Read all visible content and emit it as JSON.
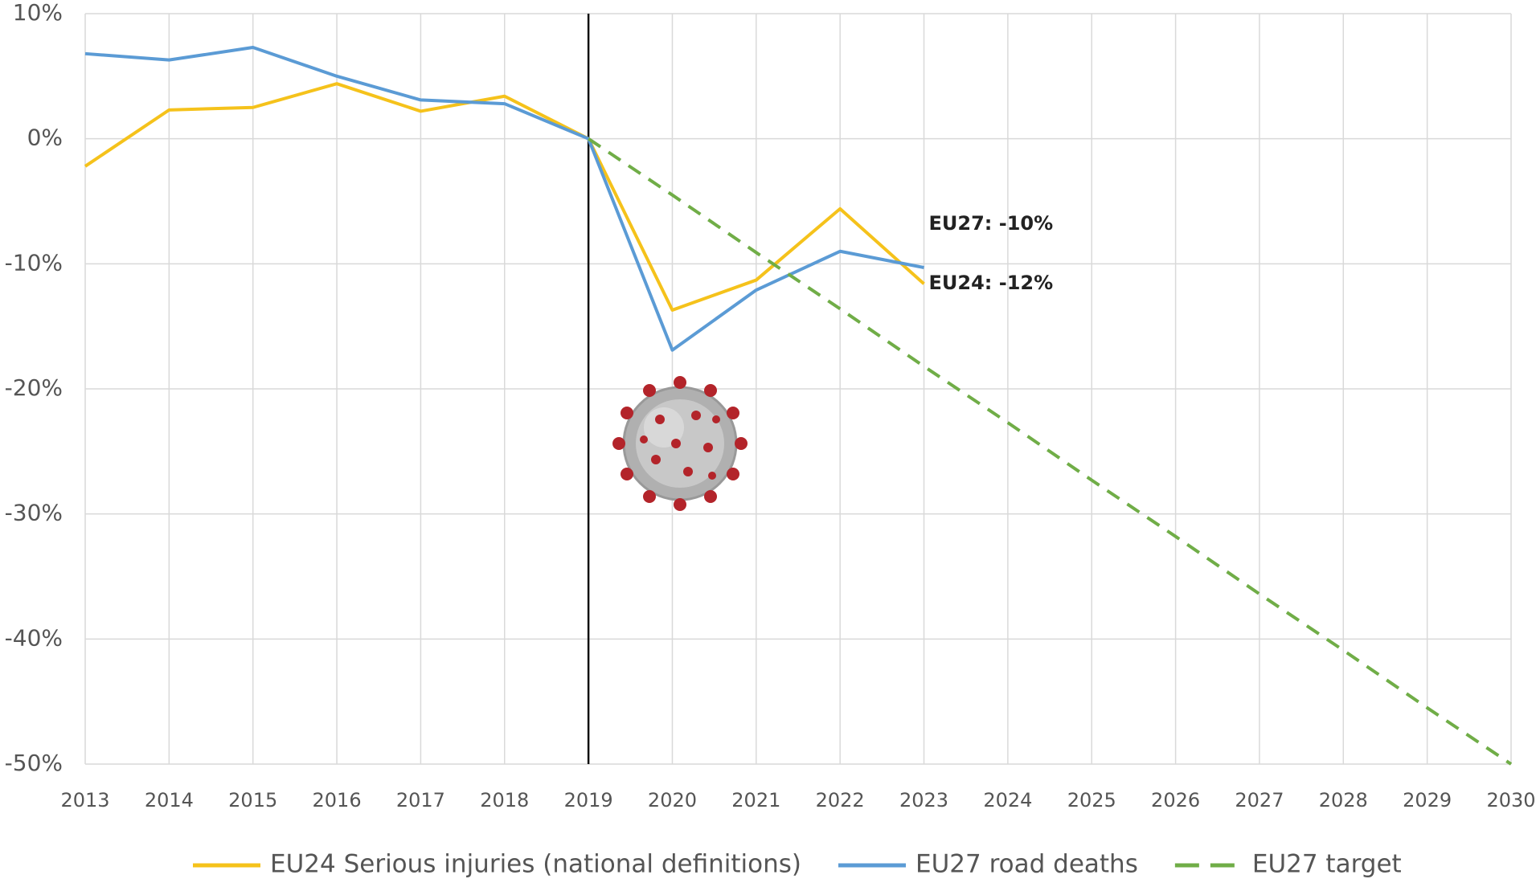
{
  "chart_data": {
    "type": "line",
    "x": [
      2013,
      2014,
      2015,
      2016,
      2017,
      2018,
      2019,
      2020,
      2021,
      2022,
      2023,
      2024,
      2025,
      2026,
      2027,
      2028,
      2029,
      2030
    ],
    "series": [
      {
        "name": "EU24 Serious injuries (national definitions)",
        "color": "#f5c21b",
        "dashed": false,
        "values": [
          -2.2,
          2.3,
          2.5,
          4.4,
          2.2,
          3.4,
          0,
          -13.7,
          -11.3,
          -5.6,
          -11.6,
          null,
          null,
          null,
          null,
          null,
          null,
          null
        ]
      },
      {
        "name": "EU27 road deaths",
        "color": "#5b9bd5",
        "dashed": false,
        "values": [
          6.8,
          6.3,
          7.3,
          5.0,
          3.1,
          2.8,
          0,
          -16.9,
          -12.1,
          -9.0,
          -10.3,
          null,
          null,
          null,
          null,
          null,
          null,
          null
        ]
      },
      {
        "name": "EU27 target",
        "color": "#70ad47",
        "dashed": true,
        "values": [
          null,
          null,
          null,
          null,
          null,
          null,
          0,
          -4.5,
          -9.1,
          -13.6,
          -18.2,
          -22.7,
          -27.3,
          -31.8,
          -36.4,
          -40.9,
          -45.5,
          -50
        ]
      }
    ],
    "annotations": [
      {
        "text": "EU27: -10%",
        "series": 1
      },
      {
        "text": "EU24: -12%",
        "series": 0
      }
    ],
    "vline_x": 2019,
    "xlim": [
      2013,
      2030
    ],
    "xticks": [
      2013,
      2014,
      2015,
      2016,
      2017,
      2018,
      2019,
      2020,
      2021,
      2022,
      2023,
      2024,
      2025,
      2026,
      2027,
      2028,
      2029,
      2030
    ],
    "ylim": [
      -50,
      10
    ],
    "yticks": [
      {
        "value": -50,
        "label": "-50%"
      },
      {
        "value": -40,
        "label": "-40%"
      },
      {
        "value": -30,
        "label": "-30%"
      },
      {
        "value": -20,
        "label": "-20%"
      },
      {
        "value": -10,
        "label": "-10%"
      },
      {
        "value": 0,
        "label": "0%"
      },
      {
        "value": 10,
        "label": "10%"
      }
    ],
    "grid": true
  }
}
